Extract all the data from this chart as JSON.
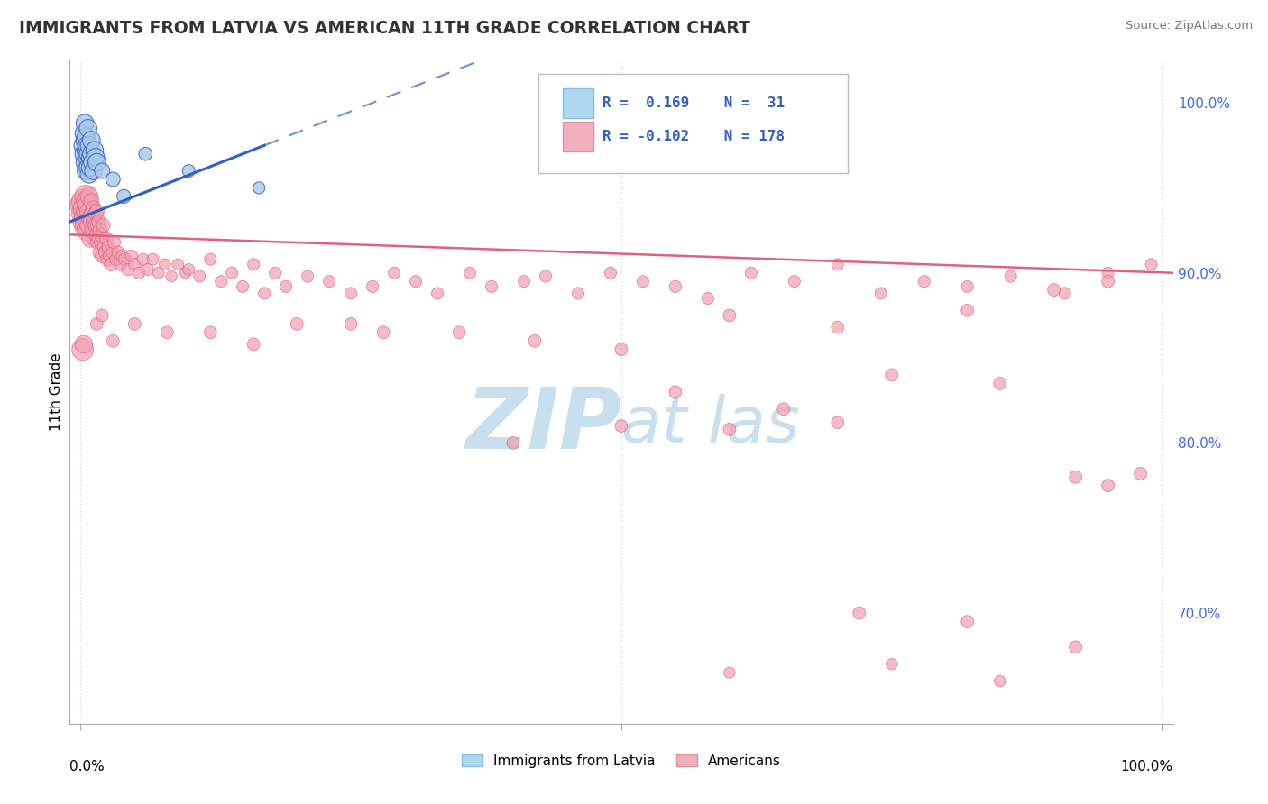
{
  "title": "IMMIGRANTS FROM LATVIA VS AMERICAN 11TH GRADE CORRELATION CHART",
  "source": "Source: ZipAtlas.com",
  "ylabel": "11th Grade",
  "y_ticks": [
    "70.0%",
    "80.0%",
    "90.0%",
    "100.0%"
  ],
  "y_tick_vals": [
    0.7,
    0.8,
    0.9,
    1.0
  ],
  "blue_scatter_color": "#A8C8E8",
  "pink_scatter_color": "#F0A0B0",
  "blue_line_color": "#3060C0",
  "pink_line_color": "#E06080",
  "background_color": "#FFFFFF",
  "grid_color": "#DCDCDC",
  "watermark_color": "#C8DFF0",
  "text_color": "#333333",
  "right_tick_color": "#4169E1"
}
